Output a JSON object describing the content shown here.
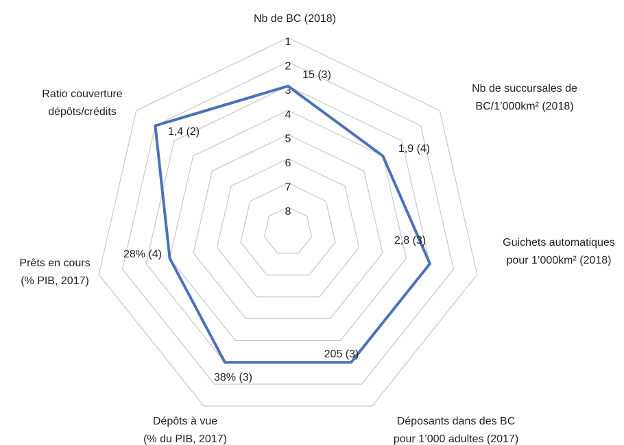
{
  "chart_data": {
    "type": "radar",
    "categories": [
      [
        "Nb de BC (2018)"
      ],
      [
        "Nb de succursales de",
        "BC/1’000km² (2018)"
      ],
      [
        "Guichets automatiques",
        "pour 1’000km² (2018)"
      ],
      [
        "Déposants dans des BC",
        "pour 1’000 adultes (2017)"
      ],
      [
        "Dépôts à vue",
        "(% du PIB, 2017)"
      ],
      [
        "Prêts en cours",
        "(% PIB, 2017)"
      ],
      [
        "Ratio couverture",
        "dépôts/crédits"
      ]
    ],
    "series": [
      {
        "color": "#4a72b8",
        "values": [
          3,
          4,
          3,
          3,
          3,
          4,
          2
        ],
        "value_labels": [
          "15 (3)",
          "1,9 (4)",
          "2,8 (3)",
          "205 (3)",
          "38% (3)",
          "28% (4)",
          "1,4 (2)"
        ]
      }
    ],
    "rlim": [
      9,
      1
    ],
    "rticks": [
      1,
      2,
      3,
      4,
      5,
      6,
      7,
      8
    ],
    "grid": true
  }
}
